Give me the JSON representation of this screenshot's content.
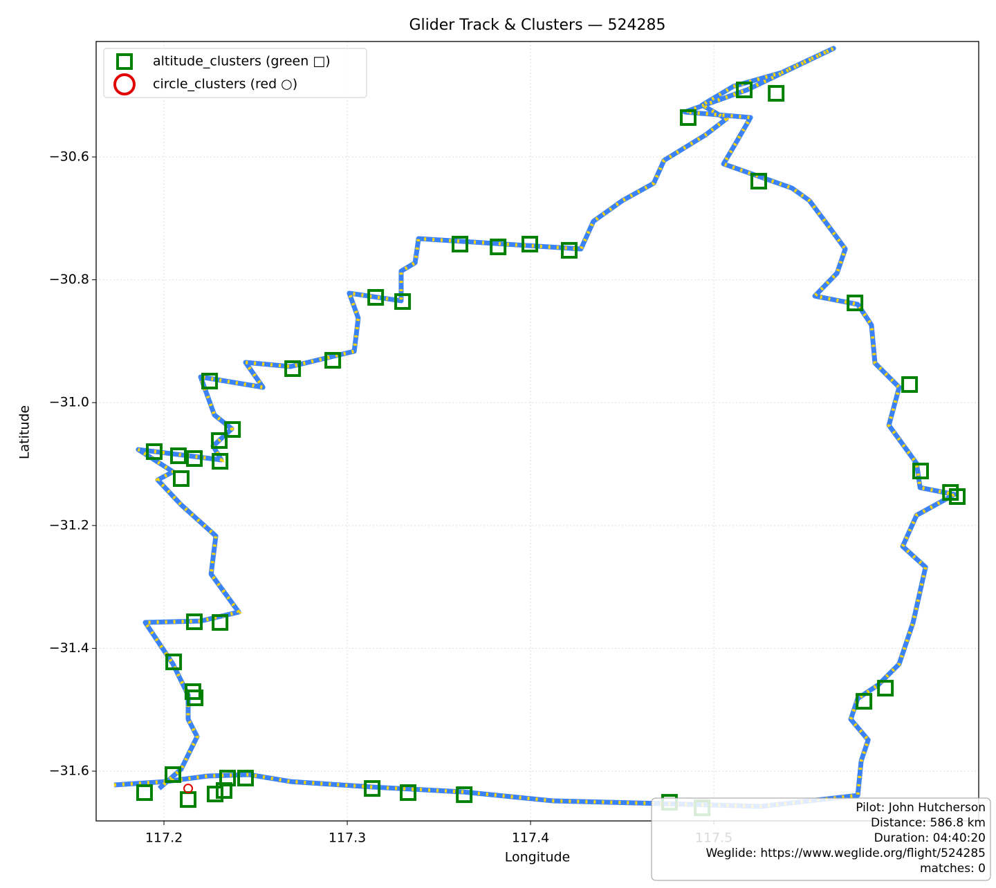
{
  "chart_data": {
    "type": "scatter",
    "title": "Glider Track & Clusters — 524285",
    "x_label": "Longitude",
    "y_label": "Latitude",
    "xlim": [
      117.163,
      117.6445
    ],
    "ylim": [
      -31.681,
      -30.412
    ],
    "xticks": [
      117.2,
      117.3,
      117.4,
      117.5
    ],
    "yticks": [
      {
        "value": -30.6,
        "label": "−30.6"
      },
      {
        "value": -30.8,
        "label": "−30.8"
      },
      {
        "value": -31.0,
        "label": "−31.0"
      },
      {
        "value": -31.2,
        "label": "−31.2"
      },
      {
        "value": -31.4,
        "label": "−31.4"
      },
      {
        "value": -31.6,
        "label": "−31.6"
      }
    ],
    "grid": true,
    "legend": "upper left",
    "series": [
      {
        "marker": "line",
        "color": "#3b82f6",
        "highlight_color": "#ffd600",
        "x": [
          117.1728,
          117.2011,
          117.2238,
          117.2464,
          117.2691,
          117.3143,
          117.3634,
          117.4125,
          117.4728,
          117.5257,
          117.5785,
          117.5804,
          117.5842,
          117.5747,
          117.5785,
          117.5898,
          117.6011,
          117.6087,
          117.6155,
          117.603,
          117.6106,
          117.6313,
          117.6125,
          117.6106,
          117.5955,
          117.6011,
          117.5879,
          117.586,
          117.5785,
          117.5551,
          117.5672,
          117.5717,
          117.5634,
          117.5521,
          117.5426,
          117.5053,
          117.5113,
          117.52,
          117.4842,
          117.5181,
          117.5653,
          117.537,
          117.5106,
          117.4936,
          117.5068,
          117.4955,
          117.4728,
          117.4672,
          117.4502,
          117.4343,
          117.4275,
          117.3974,
          117.3389,
          117.337,
          117.3294,
          117.3294,
          117.3011,
          117.306,
          117.3038,
          117.2691,
          117.2445,
          117.254,
          117.22,
          117.2275,
          117.237,
          117.2268,
          117.2313,
          117.186,
          117.2049,
          117.1966,
          117.2094,
          117.2283,
          117.2257,
          117.2408,
          117.22,
          117.1898,
          117.2049,
          117.2132,
          117.2132,
          117.2181,
          117.2094,
          117.1974
        ],
        "y": [
          -31.6225,
          -31.6169,
          -31.6079,
          -31.6056,
          -31.6169,
          -31.6259,
          -31.6338,
          -31.6484,
          -31.6529,
          -31.6574,
          -31.6394,
          -31.5831,
          -31.5493,
          -31.5155,
          -31.4818,
          -31.4592,
          -31.4255,
          -31.3579,
          -31.2678,
          -31.234,
          -31.1833,
          -31.1495,
          -31.1383,
          -31.0989,
          -31.0369,
          -30.975,
          -30.9356,
          -30.8736,
          -30.8399,
          -30.8264,
          -30.7892,
          -30.7498,
          -30.716,
          -30.6709,
          -30.6507,
          -30.6113,
          -30.5809,
          -30.5358,
          -30.5268,
          -30.4908,
          -30.4232,
          -30.4626,
          -30.4851,
          -30.5155,
          -30.5381,
          -30.564,
          -30.6056,
          -30.6428,
          -30.6709,
          -30.7047,
          -30.7498,
          -30.7441,
          -30.7329,
          -30.7723,
          -30.7858,
          -30.8342,
          -30.8218,
          -30.8624,
          -30.9164,
          -30.9412,
          -30.9345,
          -30.975,
          -30.9581,
          -31.02,
          -31.0426,
          -31.0707,
          -31.0932,
          -31.0764,
          -31.1124,
          -31.1259,
          -31.1664,
          -31.2171,
          -31.2791,
          -31.341,
          -31.3556,
          -31.3579,
          -31.4255,
          -31.4761,
          -31.5155,
          -31.5437,
          -31.5966,
          -31.6282
        ]
      },
      {
        "name": "altitude_clusters (green □)",
        "marker": "square",
        "color": "#008000",
        "x": [
          117.5166,
          117.534,
          117.486,
          117.5245,
          117.3615,
          117.3823,
          117.3996,
          117.4211,
          117.3155,
          117.3302,
          117.2702,
          117.2921,
          117.2249,
          117.2374,
          117.2302,
          117.1947,
          117.2079,
          117.2166,
          117.2306,
          117.2094,
          117.577,
          117.6068,
          117.6128,
          117.6291,
          117.6328,
          117.2166,
          117.2306,
          117.2053,
          117.217,
          117.2158,
          117.5936,
          117.5819,
          117.1894,
          117.2049,
          117.2132,
          117.2279,
          117.2347,
          117.2328,
          117.2445,
          117.3136,
          117.3332,
          117.3638,
          117.4758,
          117.4936
        ],
        "y": [
          -30.4908,
          -30.4964,
          -30.5358,
          -30.6394,
          -30.7419,
          -30.7464,
          -30.7419,
          -30.752,
          -30.8286,
          -30.8354,
          -30.9446,
          -30.9311,
          -30.9649,
          -31.0437,
          -31.0617,
          -31.0797,
          -31.0865,
          -31.091,
          -31.0955,
          -31.1236,
          -30.8376,
          -30.9705,
          -31.1113,
          -31.1462,
          -31.1529,
          -31.3568,
          -31.3579,
          -31.4221,
          -31.4806,
          -31.4705,
          -31.4649,
          -31.4863,
          -31.6349,
          -31.6056,
          -31.6462,
          -31.6372,
          -31.6113,
          -31.6315,
          -31.6113,
          -31.6282,
          -31.6349,
          -31.6383,
          -31.6507,
          -31.6597
        ]
      },
      {
        "name": "circle_clusters (red ○)",
        "marker": "circle",
        "color": "#e00000",
        "x": [
          117.2132
        ],
        "y": [
          -31.6282
        ]
      }
    ],
    "annotation": [
      "Pilot: John Hutcherson",
      "Distance: 586.8 km",
      "Duration: 04:40:20",
      "Weglide: https://www.weglide.org/flight/524285",
      "matches: 0"
    ]
  }
}
